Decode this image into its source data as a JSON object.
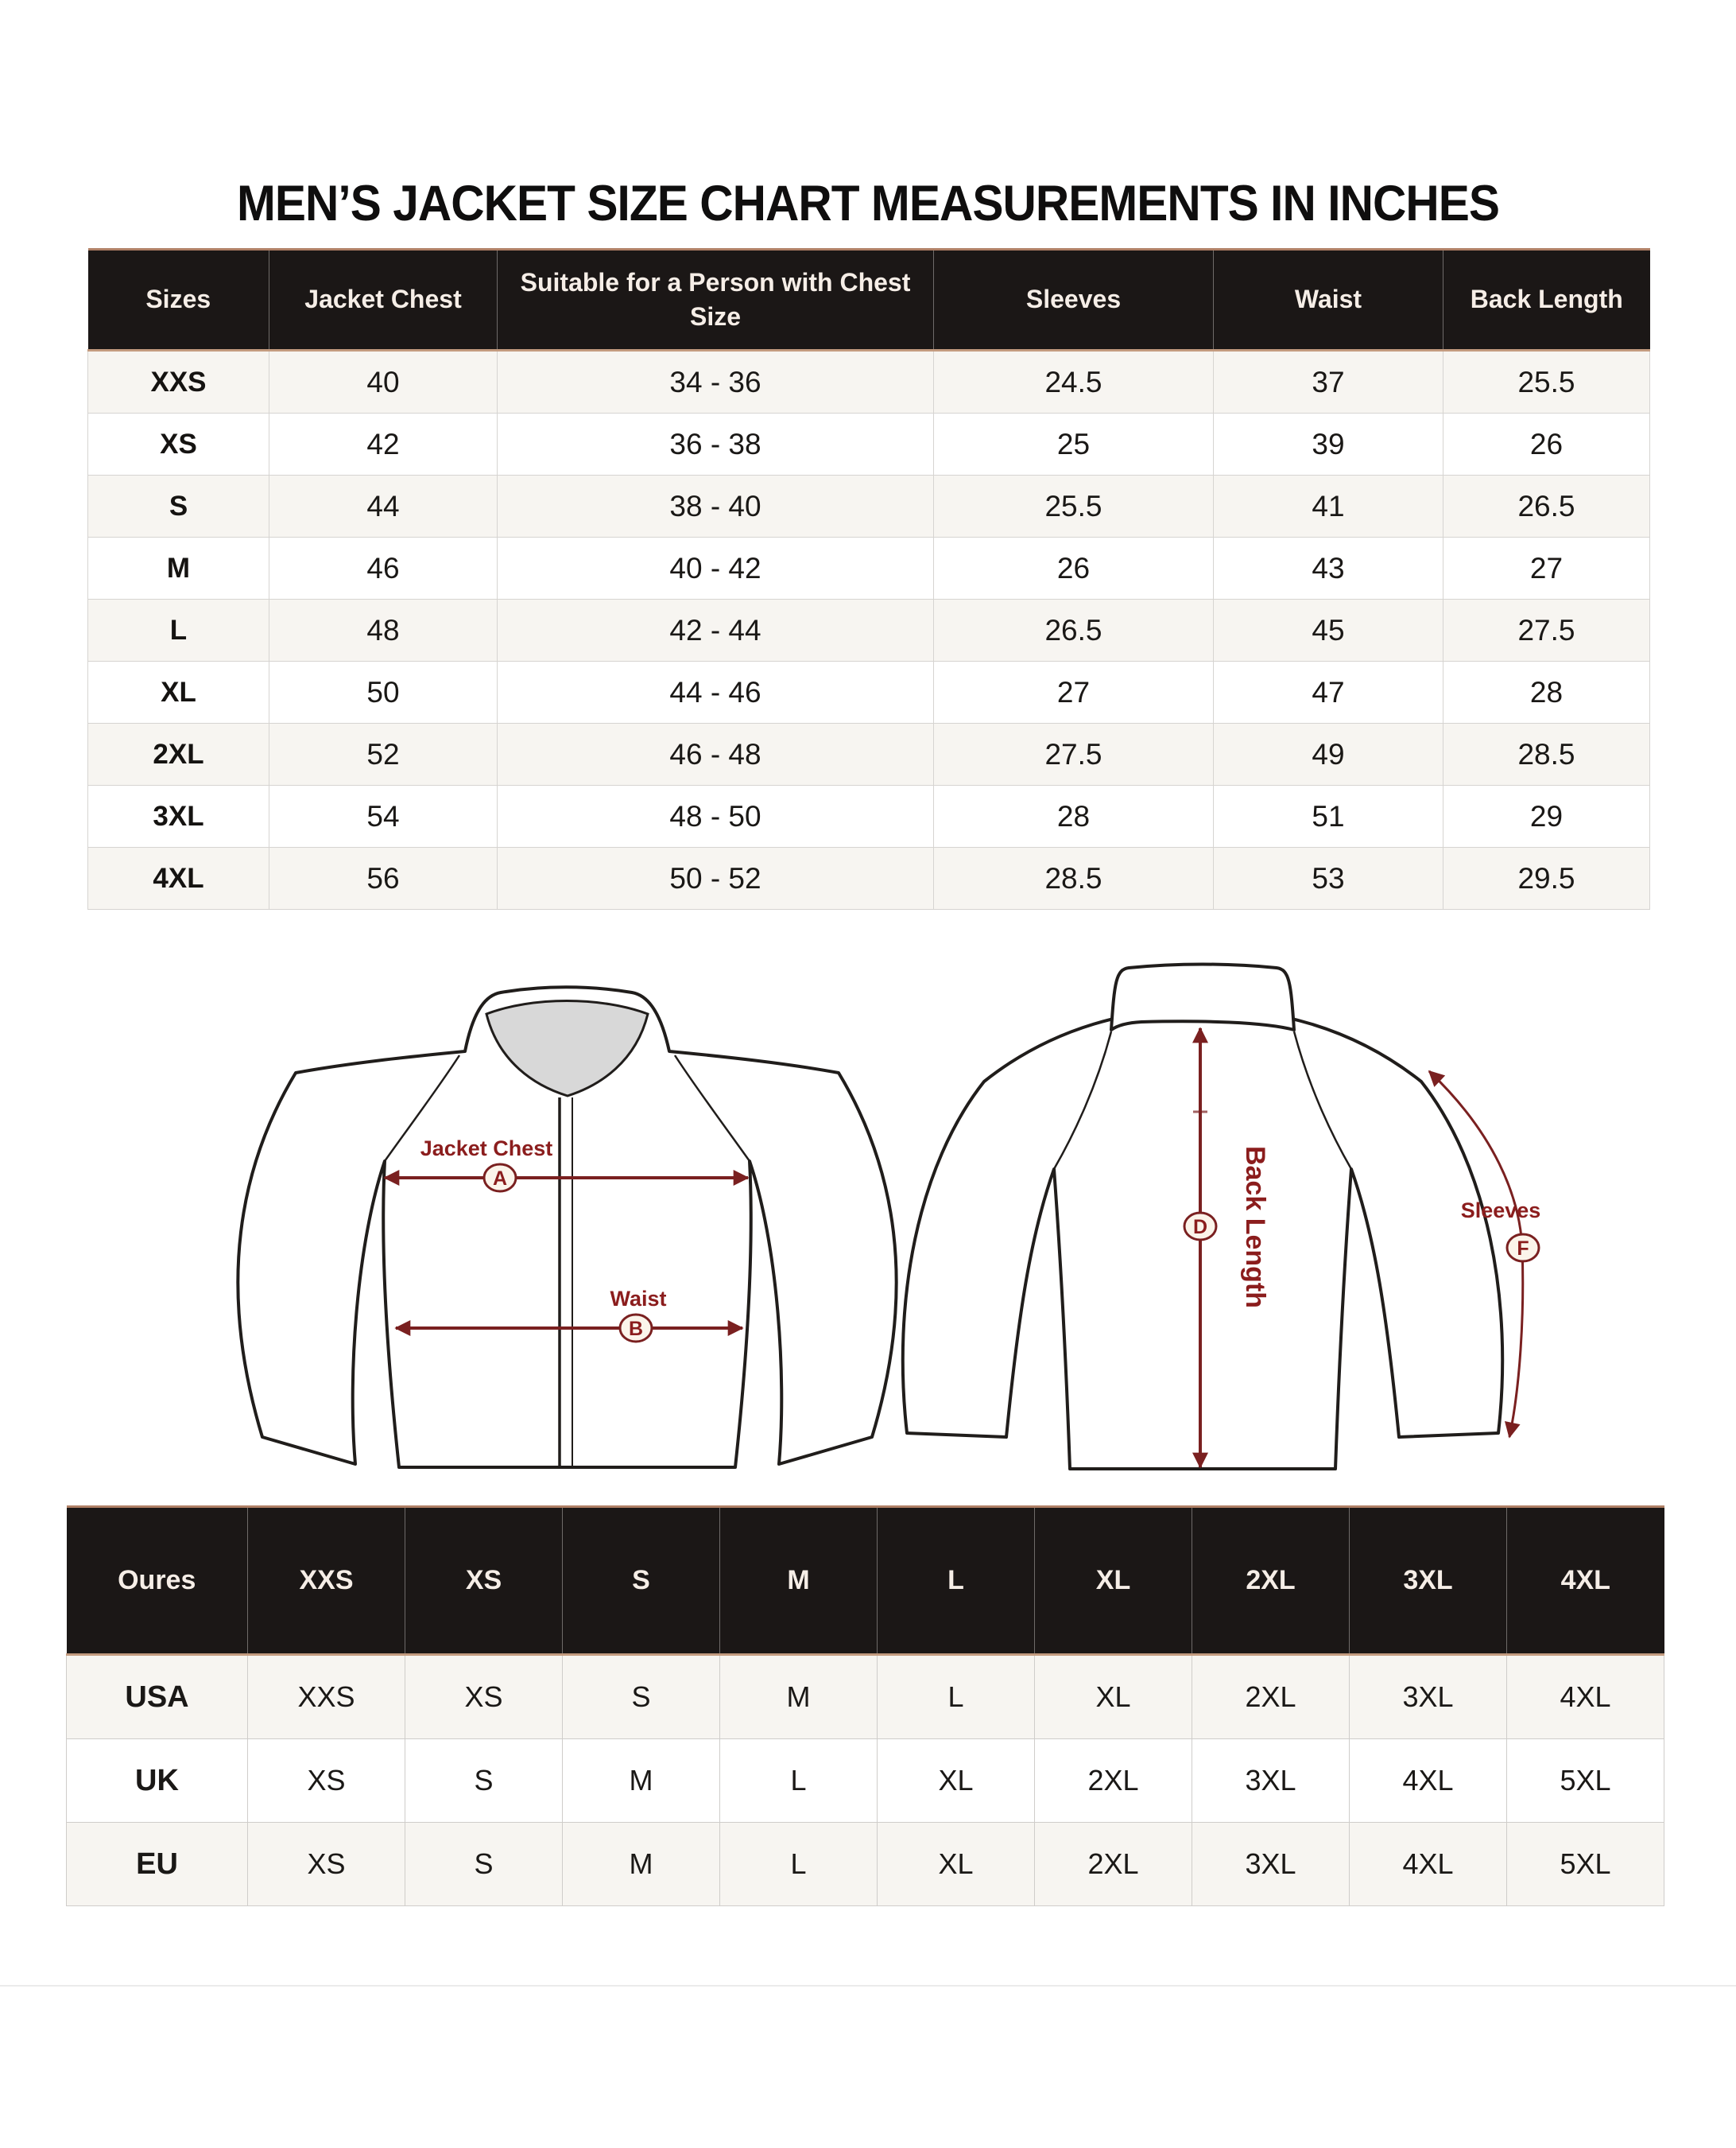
{
  "title": "MEN’S JACKET SIZE CHART MEASUREMENTS IN INCHES",
  "size_table": {
    "columns": [
      "Sizes",
      "Jacket Chest",
      "Suitable for a Person with Chest Size",
      "Sleeves",
      "Waist",
      "Back Length"
    ],
    "rows": [
      [
        "XXS",
        "40",
        "34 - 36",
        "24.5",
        "37",
        "25.5"
      ],
      [
        "XS",
        "42",
        "36 - 38",
        "25",
        "39",
        "26"
      ],
      [
        "S",
        "44",
        "38 - 40",
        "25.5",
        "41",
        "26.5"
      ],
      [
        "M",
        "46",
        "40 - 42",
        "26",
        "43",
        "27"
      ],
      [
        "L",
        "48",
        "42 - 44",
        "26.5",
        "45",
        "27.5"
      ],
      [
        "XL",
        "50",
        "44 - 46",
        "27",
        "47",
        "28"
      ],
      [
        "2XL",
        "52",
        "46 - 48",
        "27.5",
        "49",
        "28.5"
      ],
      [
        "3XL",
        "54",
        "48 - 50",
        "28",
        "51",
        "29"
      ],
      [
        "4XL",
        "56",
        "50 - 52",
        "28.5",
        "53",
        "29.5"
      ]
    ]
  },
  "diagram": {
    "front": {
      "chest_label": "Jacket Chest",
      "chest_marker": "A",
      "waist_label": "Waist",
      "waist_marker": "B"
    },
    "back": {
      "back_length_label": "Back Length",
      "back_length_marker": "D",
      "sleeves_label": "Sleeves",
      "sleeves_marker": "F"
    }
  },
  "conversion_table": {
    "columns": [
      "Oures",
      "XXS",
      "XS",
      "S",
      "M",
      "L",
      "XL",
      "2XL",
      "3XL",
      "4XL"
    ],
    "rows": [
      [
        "USA",
        "XXS",
        "XS",
        "S",
        "M",
        "L",
        "XL",
        "2XL",
        "3XL",
        "4XL"
      ],
      [
        "UK",
        "XS",
        "S",
        "M",
        "L",
        "XL",
        "2XL",
        "3XL",
        "4XL",
        "5XL"
      ],
      [
        "EU",
        "XS",
        "S",
        "M",
        "L",
        "XL",
        "2XL",
        "3XL",
        "4XL",
        "5XL"
      ]
    ]
  },
  "colors": {
    "table_header_bg": "#1b1716",
    "table_header_text": "#f6eee7",
    "annotation_accent": "#8b1d1d",
    "row_alternate_bg": "#f7f5f1",
    "collar_gray": "#d8d8d8"
  }
}
